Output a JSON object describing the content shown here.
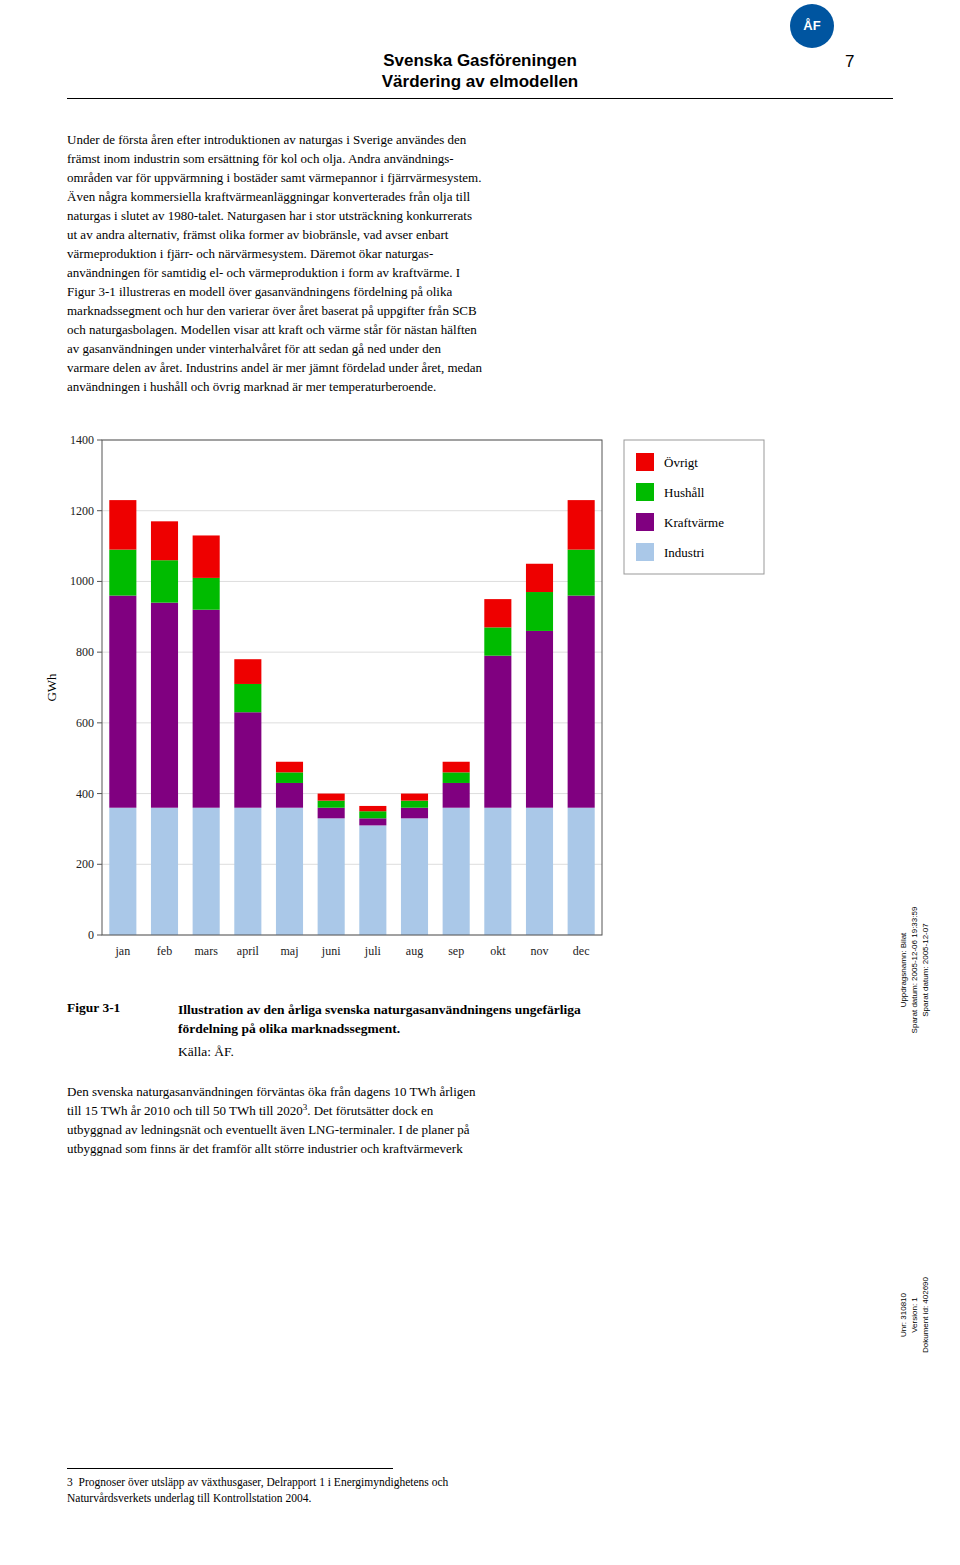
{
  "page": {
    "logo": "ÅF",
    "title": [
      "Svenska Gasföreningen",
      "Värdering av elmodellen"
    ],
    "page_number": "7",
    "body_text": "Under de första åren efter introduktionen av naturgas i Sverige användes den\nfrämst inom industrin som ersättning för kol och olja. Andra användnings-\nområden var för uppvärmning i bostäder samt värmepannor i fjärrvärmesystem.\nÄven några kommersiella kraftvärmeanläggningar konverterades från olja till\nnaturgas i slutet av 1980-talet. Naturgasen har i stor utsträckning konkurrerats\nut av andra alternativ, främst olika former av biobränsle, vad avser enbart\nvärmeproduktion i fjärr- och närvärmesystem. Däremot ökar naturgas-\nanvändningen för samtidig el- och värmeproduktion i form av kraftvärme. I\nFigur 3-1 illustreras en modell över gasanvändningens fördelning på olika\nmarknadssegment och hur den varierar över året baserat på uppgifter från SCB\noch naturgasbolagen. Modellen visar att kraft och värme står för nästan hälften\nav gasanvändningen under vinterhalvåret för att sedan gå ned under den\nvarmare delen av året. Industrins andel är mer jämnt fördelad under året, medan\nanvändningen i hushåll och övrig marknad är mer temperaturberoende.",
    "figure_label": "Figur 3-1",
    "figure_caption": "Illustration av den årliga svenska naturgasanvändningens ungefärliga\nfördelning på olika marknadssegment.",
    "figure_source": "Källa: ÅF.",
    "body_text2": [
      "Den svenska naturgasanvändningen förväntas öka från dagens 10 TWh årligen\ntill 15 TWh år 2010 och till 50 TWh till 2020",
      "3",
      ". Det förutsätter dock en\nutbyggnad av ledningsnät och eventuellt även LNG-terminaler. I de planer på\nutbyggnad som finns är det framför allt större industrier och kraftvärmeverk"
    ],
    "footnote": "3  Prognoser över utsläpp av växthusgaser, Delrapport 1 i Energimyndighetens och\nNaturvårdsverkets underlag till Kontrollstation 2004.",
    "side_text": [
      "Uppdragsnamn: Bilat\nSparat datum: 2005-12-06 19:33:59\nSparat datum: 2005-12-07",
      "Unr: 310810\nVersion: 1\nDokument id: 402690"
    ]
  },
  "chart_data": {
    "type": "bar",
    "stacked": true,
    "categories": [
      "jan",
      "feb",
      "mars",
      "april",
      "maj",
      "juni",
      "juli",
      "aug",
      "sep",
      "okt",
      "nov",
      "dec"
    ],
    "series": [
      {
        "name": "Industri",
        "color": "#aac8e8",
        "values": [
          360,
          360,
          360,
          360,
          360,
          330,
          310,
          330,
          360,
          360,
          360,
          360
        ]
      },
      {
        "name": "Kraftvärme",
        "color": "#800080",
        "values": [
          600,
          580,
          560,
          270,
          70,
          30,
          20,
          30,
          70,
          430,
          500,
          600
        ]
      },
      {
        "name": "Hushåll",
        "color": "#00bb00",
        "values": [
          130,
          120,
          90,
          80,
          30,
          20,
          20,
          20,
          30,
          80,
          110,
          130
        ]
      },
      {
        "name": "Övrigt",
        "color": "#ee0000",
        "values": [
          140,
          110,
          120,
          70,
          30,
          20,
          15,
          20,
          30,
          80,
          80,
          140
        ]
      }
    ],
    "y_label": "GWh",
    "ylim": [
      0,
      1400
    ],
    "yticks": [
      0,
      200,
      400,
      600,
      800,
      1000,
      1200,
      1400
    ],
    "grid": true,
    "legend": "right"
  }
}
